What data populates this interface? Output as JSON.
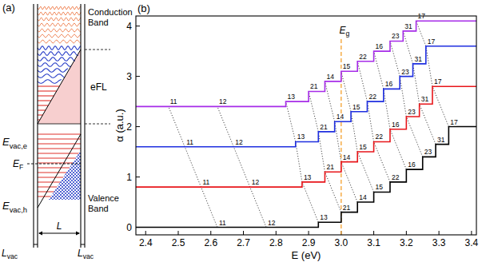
{
  "diagram": {
    "panel_label": "(a)",
    "conduction_band": "Conduction Band",
    "valence_band": "Valence Band",
    "field_energy": "eFL",
    "E_vac_e": {
      "text": "E",
      "sub": "vac,e"
    },
    "E_F": {
      "text": "E",
      "sub": "F"
    },
    "E_vac_h": {
      "text": "E",
      "sub": "vac,h"
    },
    "L": "L",
    "L_vac": {
      "text": "L",
      "sub": "vac"
    }
  },
  "chart_data": {
    "type": "line",
    "panel_label": "(b)",
    "x_label": "E (eV)",
    "y_label": "α (a.u.)",
    "xlim": [
      2.37,
      3.415
    ],
    "ylim": [
      -0.15,
      4.2
    ],
    "xticks": [
      2.4,
      2.5,
      2.6,
      2.7,
      2.8,
      2.9,
      {
        "value": 3,
        "label": "3.0"
      },
      3.1,
      3.2,
      3.3,
      3.4
    ],
    "yticks": [
      0,
      1,
      2,
      3,
      4
    ],
    "grid": false,
    "series": [
      {
        "type": "step",
        "color": "#000000",
        "x": [
          2.37,
          2.93,
          3.0,
          3.05,
          3.1,
          3.15,
          3.2,
          3.25,
          3.29,
          3.33,
          3.415
        ],
        "values": [
          0,
          0.1,
          0.3,
          0.5,
          0.7,
          0.9,
          1.15,
          1.4,
          1.65,
          2.0,
          2.0
        ]
      },
      {
        "type": "step",
        "color": "#e8161b",
        "x": [
          2.37,
          2.88,
          2.95,
          3.0,
          3.05,
          3.1,
          3.15,
          3.2,
          3.24,
          3.28,
          3.415
        ],
        "values": [
          0.8,
          0.9,
          1.1,
          1.3,
          1.5,
          1.7,
          1.95,
          2.2,
          2.45,
          2.8,
          2.8
        ]
      },
      {
        "type": "step",
        "color": "#1f2fe0",
        "x": [
          2.37,
          2.86,
          2.93,
          2.98,
          3.03,
          3.08,
          3.13,
          3.18,
          3.22,
          3.26,
          3.415
        ],
        "values": [
          1.6,
          1.7,
          1.9,
          2.1,
          2.3,
          2.5,
          2.75,
          3.0,
          3.25,
          3.6,
          3.6
        ]
      },
      {
        "type": "step",
        "color": "#a62ce8",
        "x": [
          2.37,
          2.83,
          2.9,
          2.95,
          3.0,
          3.05,
          3.1,
          3.15,
          3.19,
          3.23,
          3.415
        ],
        "values": [
          2.4,
          2.5,
          2.7,
          2.9,
          3.1,
          3.3,
          3.5,
          3.7,
          3.9,
          4.1,
          4.1
        ]
      }
    ],
    "transitions": [
      {
        "label": "11",
        "x": [
          2.62,
          2.57,
          2.52,
          2.47
        ]
      },
      {
        "label": "12",
        "x": [
          2.77,
          2.72,
          2.67,
          2.62
        ]
      },
      {
        "label": "13",
        "x": [
          2.93,
          2.88,
          2.86,
          2.83
        ]
      },
      {
        "label": "21",
        "x": [
          3.0,
          2.95,
          2.93,
          2.9
        ]
      },
      {
        "label": "14",
        "x": [
          3.05,
          3.0,
          2.98,
          2.95
        ]
      },
      {
        "label": "15",
        "x": [
          3.1,
          3.05,
          3.03,
          3.0
        ]
      },
      {
        "label": "22",
        "x": [
          3.15,
          3.1,
          3.08,
          3.05
        ]
      },
      {
        "label": "16",
        "x": [
          3.2,
          3.15,
          3.13,
          3.1
        ]
      },
      {
        "label": "23",
        "x": [
          3.25,
          3.2,
          3.18,
          3.15
        ]
      },
      {
        "label": "31",
        "x": [
          3.29,
          3.24,
          3.22,
          3.19
        ]
      },
      {
        "label": "17",
        "x": [
          3.33,
          3.28,
          3.26,
          3.23
        ]
      }
    ],
    "annotations": [
      {
        "text": "E",
        "sub": "g",
        "x": 3.0,
        "y": 3.85,
        "color": "#f5a02c",
        "line_style": "dashed"
      }
    ]
  }
}
